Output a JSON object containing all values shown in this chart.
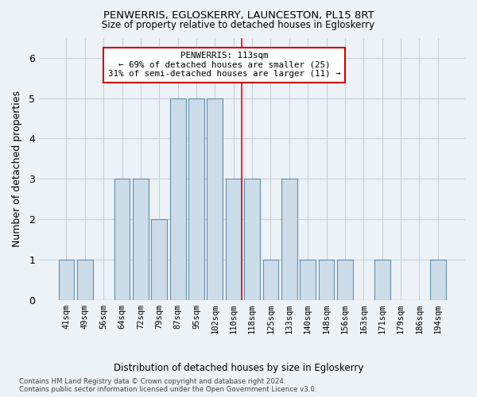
{
  "title": "PENWERRIS, EGLOSKERRY, LAUNCESTON, PL15 8RT",
  "subtitle": "Size of property relative to detached houses in Egloskerry",
  "xlabel": "Distribution of detached houses by size in Egloskerry",
  "ylabel": "Number of detached properties",
  "categories": [
    "41sqm",
    "49sqm",
    "56sqm",
    "64sqm",
    "72sqm",
    "79sqm",
    "87sqm",
    "95sqm",
    "102sqm",
    "110sqm",
    "118sqm",
    "125sqm",
    "133sqm",
    "140sqm",
    "148sqm",
    "156sqm",
    "163sqm",
    "171sqm",
    "179sqm",
    "186sqm",
    "194sqm"
  ],
  "values": [
    1,
    1,
    0,
    3,
    3,
    2,
    5,
    5,
    5,
    3,
    3,
    1,
    3,
    1,
    1,
    1,
    0,
    1,
    0,
    0,
    1
  ],
  "bar_color": "#ccdce8",
  "bar_edge_color": "#6090b0",
  "grid_color": "#c8d0d8",
  "background_color": "#edf2f7",
  "red_line_x": 9.45,
  "annotation_text": "PENWERRIS: 113sqm\n← 69% of detached houses are smaller (25)\n31% of semi-detached houses are larger (11) →",
  "annotation_box_color": "#ffffff",
  "annotation_box_edge": "#cc0000",
  "ylim": [
    0,
    6.5
  ],
  "yticks": [
    0,
    1,
    2,
    3,
    4,
    5,
    6
  ],
  "footer1": "Contains HM Land Registry data © Crown copyright and database right 2024.",
  "footer2": "Contains public sector information licensed under the Open Government Licence v3.0."
}
